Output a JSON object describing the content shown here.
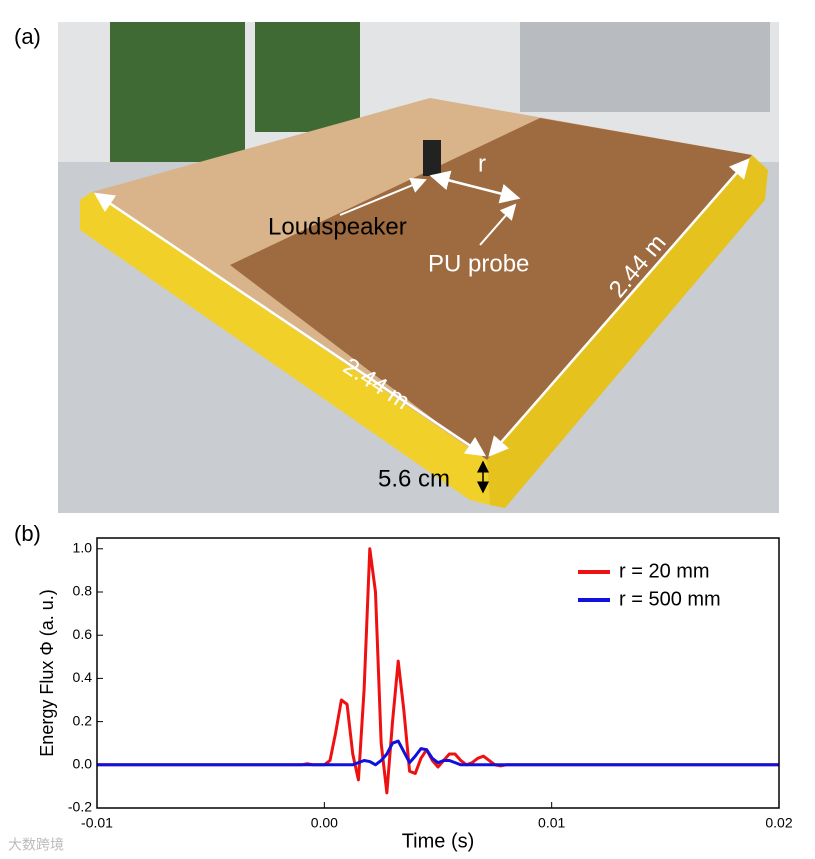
{
  "panel_a": {
    "label": "(a)",
    "r_label": "r",
    "loudspeaker": "Loudspeaker",
    "probe": "PU probe",
    "side_1": "2.44 m",
    "side_2": "2.44 m",
    "thickness": "5.6 cm"
  },
  "panel_b_label": "(b)",
  "watermark": "大数跨境",
  "chart_data": {
    "type": "line",
    "x_label": "Time (s)",
    "y_label": "Energy Flux Φ (a. u.)",
    "xlim": [
      -0.01,
      0.02
    ],
    "ylim": [
      -0.2,
      1.05
    ],
    "xticks": [
      -0.01,
      {
        "value": 0,
        "label": "0.00"
      },
      0.01,
      0.02
    ],
    "yticks": [
      -0.2,
      {
        "value": 0,
        "label": "0.0"
      },
      0.2,
      0.4,
      0.6,
      0.8,
      {
        "value": 1,
        "label": "1.0"
      }
    ],
    "legend": "upper right",
    "x": [
      -0.01,
      -0.001,
      -0.00075,
      -0.0005,
      -0.00025,
      0,
      0.00025,
      0.0005,
      0.00075,
      0.001,
      0.00125,
      0.0015,
      0.00175,
      0.002,
      0.00225,
      0.0025,
      0.00275,
      0.003,
      0.00325,
      0.0035,
      0.00375,
      0.004,
      0.00425,
      0.0045,
      0.00475,
      0.005,
      0.00525,
      0.0055,
      0.00575,
      0.006,
      0.00625,
      0.0065,
      0.00675,
      0.007,
      0.00725,
      0.0075,
      0.00775,
      0.008,
      0.02
    ],
    "series": [
      {
        "name": "r = 20 mm",
        "color": "#ee1111",
        "values": [
          0,
          0,
          0.005,
          0,
          0,
          0,
          0.02,
          0.15,
          0.3,
          0.28,
          0.05,
          -0.07,
          0.35,
          1.0,
          0.8,
          0.1,
          -0.13,
          0.2,
          0.48,
          0.25,
          -0.03,
          -0.04,
          0.03,
          0.07,
          0.02,
          -0.01,
          0.02,
          0.05,
          0.05,
          0.02,
          0,
          0.01,
          0.03,
          0.04,
          0.02,
          0,
          -0.005,
          0,
          0
        ]
      },
      {
        "name": "r = 500 mm",
        "color": "#1111dd",
        "values": [
          0,
          0,
          0,
          0,
          0,
          0,
          0,
          0,
          0,
          0,
          0,
          0.01,
          0.02,
          0.015,
          0,
          0.02,
          0.05,
          0.1,
          0.11,
          0.06,
          0.01,
          0.04,
          0.075,
          0.07,
          0.03,
          0.01,
          0.02,
          0.02,
          0.01,
          0,
          0,
          0,
          0,
          0,
          0,
          0,
          0,
          0,
          0
        ]
      }
    ]
  }
}
